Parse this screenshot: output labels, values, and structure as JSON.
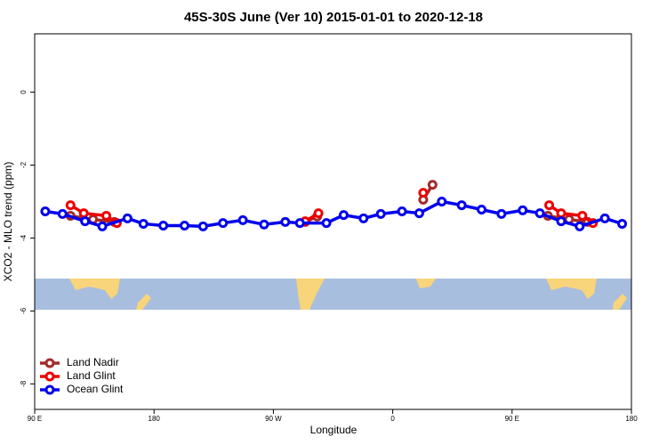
{
  "chart_data": {
    "type": "line",
    "title": "45S-30S June (Ver 10)   2015-01-01 to 2020-12-18",
    "xlabel": "Longitude",
    "ylabel": "XCO2 - MLO trend (ppm)",
    "xlim": [
      90,
      540
    ],
    "xticks": [
      {
        "value": 90,
        "label": "90 E"
      },
      180,
      {
        "value": 270,
        "label": "90 W"
      },
      {
        "value": 360,
        "label": "0"
      },
      {
        "value": 450,
        "label": "90 E"
      },
      {
        "value": 540,
        "label": "180"
      }
    ],
    "ylim": [
      -8.7,
      1.6
    ],
    "yticks": [
      0,
      -2,
      -4,
      -6,
      -8
    ],
    "legend": "bottom-left",
    "series": [
      {
        "name": "Land Nadir",
        "color": "#a52a2a",
        "x": [
          117,
          134,
          150,
          null,
          294,
          303,
          null,
          383,
          390,
          null,
          477,
          493,
          507
        ],
        "values": [
          -3.39,
          -3.49,
          -3.56,
          null,
          -3.56,
          -3.41,
          null,
          -2.95,
          -2.54,
          null,
          -3.39,
          -3.49,
          -3.56
        ]
      },
      {
        "name": "Land Glint",
        "color": "#ee0000",
        "x": [
          117,
          127,
          144,
          152,
          null,
          294,
          304,
          null,
          383,
          null,
          478,
          487,
          503,
          511
        ],
        "values": [
          -3.1,
          -3.32,
          -3.39,
          -3.59,
          null,
          -3.54,
          -3.32,
          null,
          -2.76,
          null,
          -3.1,
          -3.32,
          -3.39,
          -3.59
        ]
      },
      {
        "name": "Ocean Glint",
        "color": "#0000ee",
        "x": [
          98,
          111,
          128,
          141,
          160,
          172,
          187,
          203,
          217,
          232,
          247,
          263,
          279,
          290,
          310,
          323,
          338,
          351,
          367,
          380,
          397,
          412,
          427,
          442,
          458,
          471,
          487,
          501,
          520,
          533
        ],
        "values": [
          -3.27,
          -3.34,
          -3.54,
          -3.68,
          -3.46,
          -3.61,
          -3.66,
          -3.66,
          -3.68,
          -3.59,
          -3.51,
          -3.63,
          -3.56,
          -3.59,
          -3.59,
          -3.37,
          -3.46,
          -3.34,
          -3.27,
          -3.32,
          -3.0,
          -3.1,
          -3.22,
          -3.34,
          -3.24,
          -3.32,
          -3.54,
          -3.68,
          -3.46,
          -3.61
        ]
      }
    ]
  }
}
